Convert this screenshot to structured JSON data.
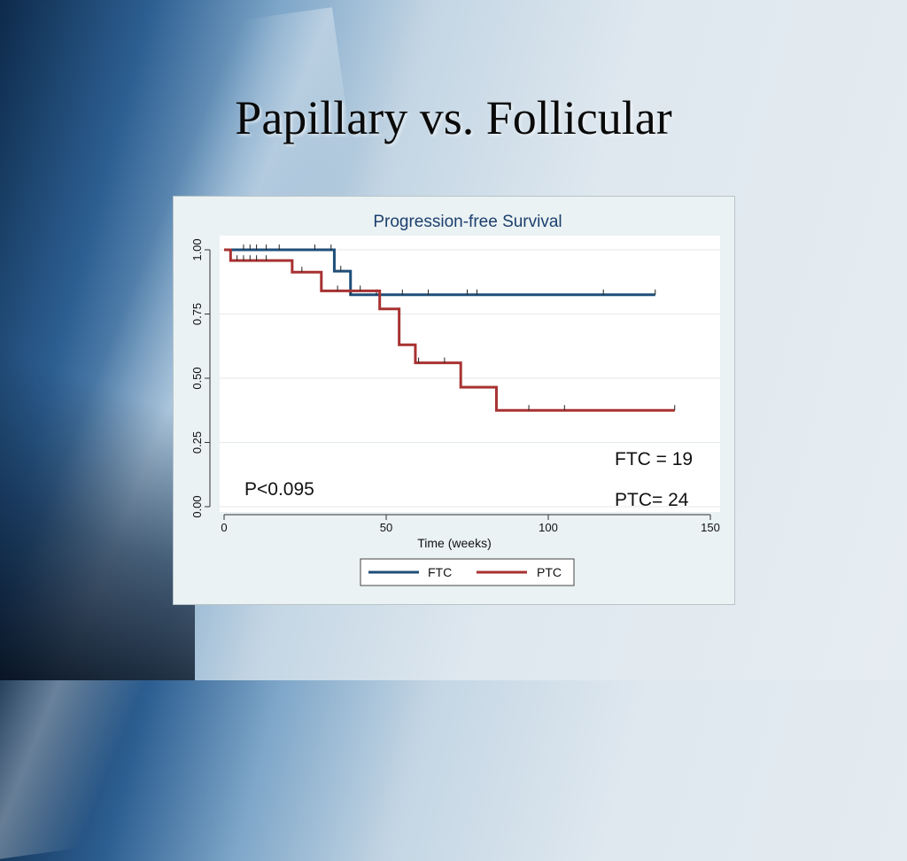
{
  "slide": {
    "title": "Papillary vs. Follicular"
  },
  "chart_data": {
    "type": "line",
    "title": "Progression-free Survival",
    "xlabel": "Time (weeks)",
    "ylabel": "",
    "xlim": [
      0,
      150
    ],
    "ylim": [
      0,
      1
    ],
    "x_ticks": [
      "0",
      "50",
      "100",
      "150"
    ],
    "y_ticks": [
      "0.00",
      "0.25",
      "0.50",
      "0.75",
      "1.00"
    ],
    "grid": true,
    "legend_position": "bottom",
    "series": [
      {
        "name": "FTC",
        "color": "#1f4e79",
        "steps": [
          [
            0,
            1.0
          ],
          [
            34,
            0.917
          ],
          [
            39,
            0.825
          ],
          [
            133,
            0.825
          ]
        ],
        "censor_times": [
          6,
          8,
          10,
          13,
          17,
          28,
          33,
          36,
          39,
          47,
          55,
          63,
          75,
          78,
          117,
          133
        ]
      },
      {
        "name": "PTC",
        "color": "#a83232",
        "steps": [
          [
            0,
            1.0
          ],
          [
            2,
            0.958
          ],
          [
            21,
            0.913
          ],
          [
            30,
            0.84
          ],
          [
            48,
            0.77
          ],
          [
            54,
            0.63
          ],
          [
            59,
            0.56
          ],
          [
            73,
            0.465
          ],
          [
            84,
            0.375
          ],
          [
            139,
            0.375
          ]
        ],
        "censor_times": [
          4,
          6,
          8,
          10,
          13,
          24,
          35,
          42,
          60,
          68,
          94,
          105,
          139
        ]
      }
    ],
    "annotations": {
      "pvalue": "P<0.095",
      "ftc_n": "FTC = 19",
      "ptc_n": "PTC= 24"
    }
  }
}
